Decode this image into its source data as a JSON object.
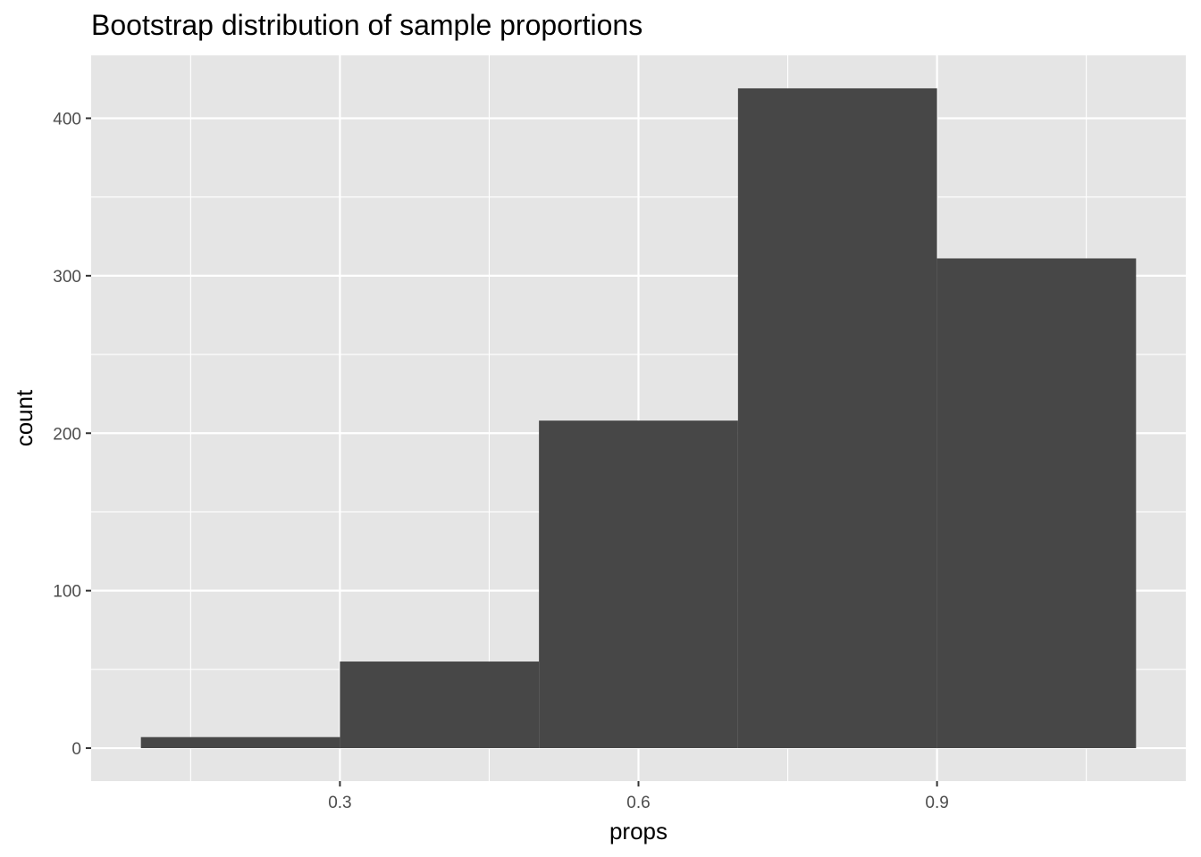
{
  "chart_data": {
    "type": "bar",
    "title": "Bootstrap distribution of sample proportions",
    "xlabel": "props",
    "ylabel": "count",
    "bins": [
      {
        "x_start": 0.1,
        "x_end": 0.3,
        "count": 7
      },
      {
        "x_start": 0.3,
        "x_end": 0.5,
        "count": 55
      },
      {
        "x_start": 0.5,
        "x_end": 0.7,
        "count": 208
      },
      {
        "x_start": 0.7,
        "x_end": 0.9,
        "count": 419
      },
      {
        "x_start": 0.9,
        "x_end": 1.1,
        "count": 311
      }
    ],
    "xlim": [
      0.05,
      1.15
    ],
    "ylim": [
      -20.95,
      439.95
    ],
    "x_ticks": [
      0.3,
      0.6,
      0.9
    ],
    "x_tick_labels": [
      "0.3",
      "0.6",
      "0.9"
    ],
    "x_minor_gridlines": [
      0.15,
      0.45,
      0.75,
      1.05
    ],
    "y_ticks": [
      0,
      100,
      200,
      300,
      400
    ],
    "y_tick_labels": [
      "0",
      "100",
      "200",
      "300",
      "400"
    ],
    "y_minor_gridlines": [
      50,
      150,
      250,
      350
    ],
    "grid": true,
    "colors": {
      "panel_background": "#e5e5e5",
      "gridline": "#ffffff",
      "bar_fill": "#474747",
      "tick_label": "#4d4d4d",
      "tick_mark": "#333333"
    }
  }
}
